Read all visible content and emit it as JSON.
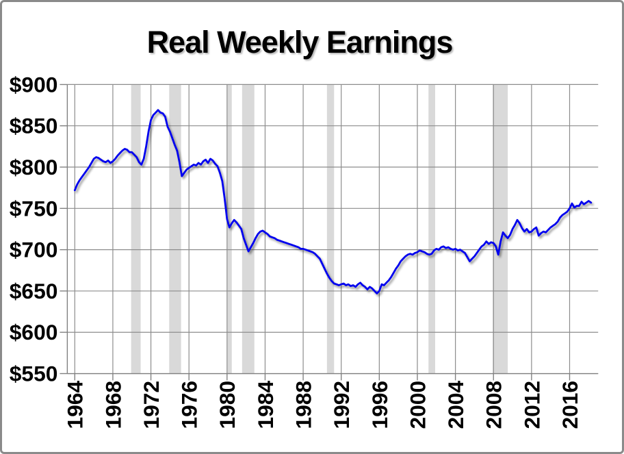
{
  "chart_data": {
    "type": "line",
    "title": "Real Weekly Earnings",
    "y_axis": {
      "min": 550,
      "max": 900,
      "step": 50,
      "tick_prefix": "$",
      "tick_labels": [
        "$550",
        "$600",
        "$650",
        "$700",
        "$750",
        "$800",
        "$850",
        "$900"
      ]
    },
    "x_axis": {
      "first_tick_year": 1964,
      "tick_step_years": 4,
      "tick_labels": [
        "1964",
        "1968",
        "1972",
        "1976",
        "1980",
        "1984",
        "1988",
        "1992",
        "1996",
        "2000",
        "2004",
        "2008",
        "2012",
        "2016"
      ]
    },
    "grid": "both",
    "legend": "none",
    "series": {
      "name": "Real Weekly Earnings",
      "start_year": 1964,
      "interval_years": 0.25,
      "values": [
        772,
        779,
        784,
        788,
        792,
        796,
        800,
        805,
        810,
        812,
        811,
        809,
        807,
        806,
        808,
        805,
        807,
        810,
        814,
        817,
        820,
        822,
        821,
        818,
        818,
        815,
        812,
        806,
        803,
        810,
        825,
        843,
        857,
        863,
        866,
        869,
        866,
        865,
        861,
        849,
        843,
        835,
        827,
        820,
        806,
        789,
        793,
        797,
        799,
        801,
        803,
        802,
        805,
        803,
        807,
        809,
        805,
        810,
        808,
        804,
        801,
        793,
        783,
        762,
        737,
        727,
        732,
        736,
        733,
        729,
        725,
        714,
        706,
        698,
        703,
        708,
        714,
        719,
        722,
        723,
        721,
        719,
        716,
        715,
        714,
        712,
        711,
        710,
        709,
        708,
        707,
        706,
        705,
        704,
        703,
        701,
        701,
        700,
        699,
        698,
        697,
        695,
        692,
        689,
        683,
        677,
        671,
        666,
        662,
        659,
        658,
        657,
        658,
        659,
        657,
        658,
        656,
        657,
        655,
        658,
        660,
        657,
        655,
        652,
        655,
        653,
        650,
        647,
        650,
        658,
        657,
        660,
        663,
        667,
        672,
        677,
        681,
        686,
        689,
        692,
        694,
        695,
        694,
        696,
        697,
        699,
        698,
        697,
        695,
        694,
        695,
        699,
        701,
        700,
        703,
        704,
        702,
        703,
        701,
        700,
        701,
        699,
        700,
        698,
        696,
        691,
        686,
        689,
        692,
        696,
        700,
        704,
        706,
        710,
        707,
        709,
        708,
        704,
        694,
        710,
        721,
        717,
        714,
        718,
        725,
        730,
        736,
        732,
        726,
        722,
        725,
        721,
        722,
        725,
        727,
        717,
        720,
        722,
        721,
        724,
        727,
        729,
        731,
        734,
        739,
        742,
        744,
        746,
        750,
        756,
        751,
        753,
        753,
        758,
        755,
        757,
        759,
        757
      ]
    },
    "recession_bands": [
      {
        "start": 1969.92,
        "end": 1970.92
      },
      {
        "start": 1973.92,
        "end": 1975.17
      },
      {
        "start": 1980.0,
        "end": 1980.5
      },
      {
        "start": 1981.58,
        "end": 1982.87
      },
      {
        "start": 1990.5,
        "end": 1991.25
      },
      {
        "start": 2001.17,
        "end": 2001.87
      },
      {
        "start": 2007.92,
        "end": 2009.5
      }
    ],
    "colors": {
      "line": "#0000ee",
      "band": "#d9d9d9",
      "gridline": "#8c8c8c",
      "axis": "#808080",
      "title": "#000000",
      "label": "#000000",
      "background": "#ffffff",
      "frame_border": "#8a8a8a"
    }
  }
}
